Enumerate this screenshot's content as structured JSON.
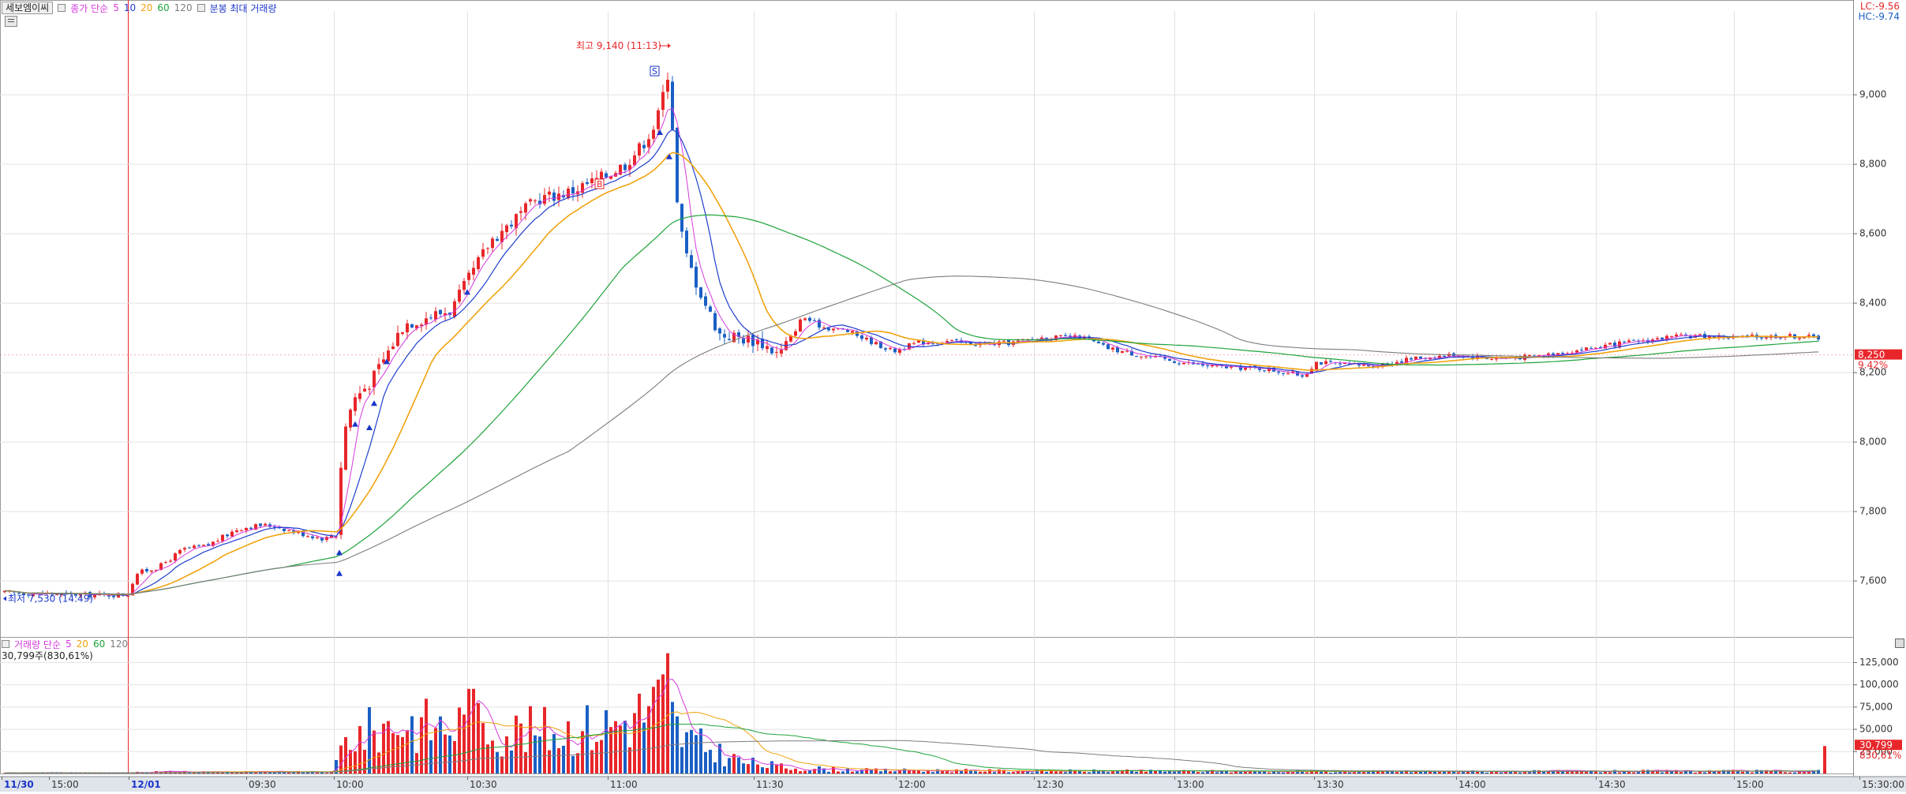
{
  "legend": {
    "main": {
      "tab": "세보엠이씨",
      "series_label": "종가 단순",
      "ma5": "5",
      "ma10": "10",
      "ma20": "20",
      "ma60": "60",
      "ma120": "120",
      "minute_label": "분봉 최대 거래량"
    },
    "volume": {
      "label": "거래량 단순",
      "ma5": "5",
      "ma20": "20",
      "ma60": "60",
      "ma120": "120",
      "current": "30,799주(830,61%)"
    }
  },
  "colors": {
    "up": "#e8262a",
    "down": "#1a5fc4",
    "ma5": "#d53adf",
    "ma10": "#1f3fce",
    "ma20": "#f0a30f",
    "ma60": "#1fa33a",
    "ma120": "#7d7d7d",
    "grid": "#e2e2e2",
    "axis": "#555555",
    "marker": "#e8262a"
  },
  "top_right": {
    "lc": "LC:-9.56",
    "hc": "HC:-9.74"
  },
  "annotations": {
    "high": "최고 9,140 (11:13)",
    "low": "최저 7,530 (14:49)",
    "marker_s": "S",
    "marker_b": "B"
  },
  "price_axis": {
    "ticks": [
      "9,000",
      "8,800",
      "8,600",
      "8,400",
      "8,200",
      "8,000",
      "7,800",
      "7,600"
    ],
    "tick_values": [
      9000,
      8800,
      8600,
      8400,
      8200,
      8000,
      7800,
      7600
    ],
    "current_price": "8,250",
    "current_change": "9.42%"
  },
  "volume_axis": {
    "ticks": [
      "125,000",
      "100,000",
      "75,000",
      "50,000",
      "25,000"
    ],
    "tick_values": [
      125000,
      100000,
      75000,
      50000,
      25000
    ],
    "current_volume": "30,799",
    "current_ratio": "830,61%"
  },
  "time_axis": {
    "labels": [
      "11/30",
      "15:00",
      "12/01",
      "09:30",
      "10:00",
      "10:30",
      "11:00",
      "11:30",
      "12:00",
      "12:30",
      "13:00",
      "13:30",
      "14:00",
      "14:30",
      "15:00",
      "15:30:00"
    ]
  },
  "chart_data": {
    "type": "candlestick",
    "price_range": [
      7440,
      9240
    ],
    "volume_range": [
      0,
      140000
    ],
    "candles": [],
    "volume": []
  }
}
